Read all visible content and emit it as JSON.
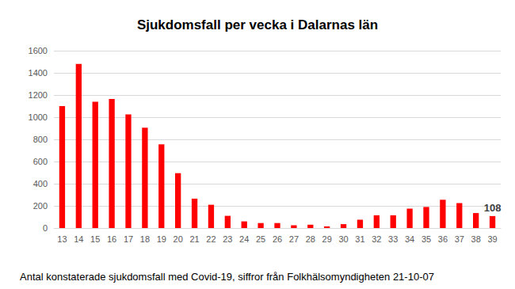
{
  "chart_data": {
    "type": "bar",
    "title": "Sjukdomsfall per vecka i Dalarnas län",
    "caption": "Antal konstaterade sjukdomsfall med Covid-19, siffror från Folkhälsomyndigheten 21-10-07",
    "categories": [
      "13",
      "14",
      "15",
      "16",
      "17",
      "18",
      "19",
      "20",
      "21",
      "22",
      "23",
      "24",
      "25",
      "26",
      "27",
      "28",
      "29",
      "30",
      "31",
      "32",
      "33",
      "34",
      "35",
      "36",
      "37",
      "38",
      "39"
    ],
    "values": [
      1100,
      1480,
      1140,
      1165,
      1025,
      905,
      755,
      495,
      265,
      210,
      110,
      60,
      45,
      45,
      25,
      30,
      15,
      35,
      75,
      115,
      115,
      175,
      190,
      255,
      225,
      135,
      108
    ],
    "color": "#ff0000",
    "ylim": [
      0,
      1600
    ],
    "yticks": [
      0,
      200,
      400,
      600,
      800,
      1000,
      1200,
      1400,
      1600
    ],
    "grid": true,
    "annotations": [
      {
        "category": "39",
        "text": "108"
      }
    ]
  }
}
